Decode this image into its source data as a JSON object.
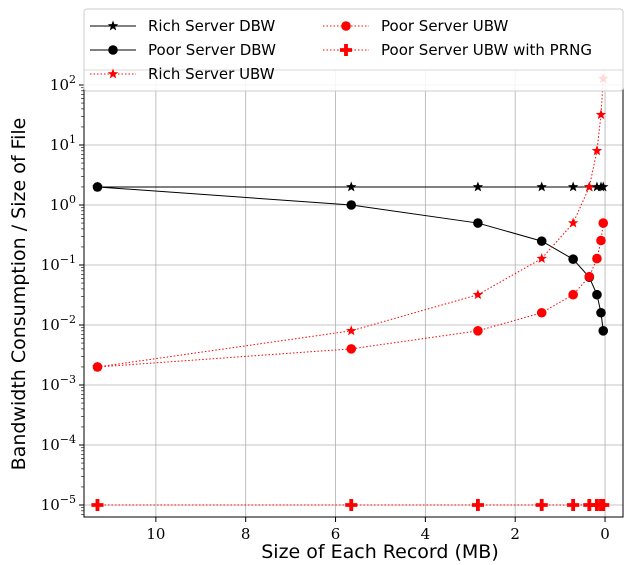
{
  "chart_data": {
    "type": "line",
    "xlabel": "Size of Each Record (MB)",
    "ylabel": "Bandwidth Consumption / Size of File",
    "x_inverted": true,
    "xlim": [
      11.6,
      -0.4
    ],
    "y_scale": "log",
    "ylim_exp": [
      -5.2,
      2.25
    ],
    "x_ticks": [
      {
        "value": 10,
        "label": "10"
      },
      {
        "value": 8,
        "label": "8"
      },
      {
        "value": 6,
        "label": "6"
      },
      {
        "value": 4,
        "label": "4"
      },
      {
        "value": 2,
        "label": "2"
      },
      {
        "value": 0,
        "label": "0"
      }
    ],
    "y_ticks": [
      {
        "exp": 2,
        "base": "10",
        "sup": "2"
      },
      {
        "exp": 1,
        "base": "10",
        "sup": "1"
      },
      {
        "exp": 0,
        "base": "10",
        "sup": "0"
      },
      {
        "exp": -1,
        "base": "10",
        "sup": "−1"
      },
      {
        "exp": -2,
        "base": "10",
        "sup": "−2"
      },
      {
        "exp": -3,
        "base": "10",
        "sup": "−3"
      },
      {
        "exp": -4,
        "base": "10",
        "sup": "−4"
      },
      {
        "exp": -5,
        "base": "10",
        "sup": "−5"
      }
    ],
    "x": [
      11.3,
      5.65,
      2.83,
      1.41,
      0.71,
      0.35,
      0.18,
      0.09,
      0.04
    ],
    "grid": true,
    "legend_position": "top",
    "series": [
      {
        "name": "Rich Server DBW",
        "color": "#000000",
        "marker": "star",
        "line": "solid",
        "x": [
          11.3,
          5.65,
          2.83,
          1.41,
          0.71,
          0.35,
          0.18,
          0.09,
          0.04
        ],
        "values": [
          2,
          2,
          2,
          2,
          2,
          2,
          2,
          2,
          2
        ]
      },
      {
        "name": "Poor Server DBW",
        "color": "#000000",
        "marker": "circle",
        "line": "solid",
        "x": [
          11.3,
          5.65,
          2.83,
          1.41,
          0.71,
          0.35,
          0.18,
          0.09,
          0.04
        ],
        "values": [
          2,
          1,
          0.5,
          0.25,
          0.125,
          0.0625,
          0.032,
          0.016,
          0.008
        ]
      },
      {
        "name": "Rich Server UBW",
        "color": "#ff0000",
        "marker": "star",
        "line": "dotted",
        "x": [
          11.3,
          5.65,
          2.83,
          1.41,
          0.71,
          0.35,
          0.18,
          0.09,
          0.04
        ],
        "values": [
          0.002,
          0.008,
          0.032,
          0.128,
          0.5,
          2,
          8,
          32,
          128
        ]
      },
      {
        "name": "Poor Server UBW",
        "color": "#ff0000",
        "marker": "circle",
        "line": "dotted",
        "x": [
          11.3,
          5.65,
          2.83,
          1.41,
          0.71,
          0.35,
          0.18,
          0.09,
          0.04
        ],
        "values": [
          0.002,
          0.004,
          0.008,
          0.016,
          0.032,
          0.064,
          0.128,
          0.256,
          0.5
        ]
      },
      {
        "name": "Poor Server UBW with PRNG",
        "color": "#ff0000",
        "marker": "plus",
        "line": "dotted",
        "x": [
          11.3,
          5.65,
          2.83,
          1.41,
          0.71,
          0.35,
          0.18,
          0.09,
          0.04
        ],
        "values": [
          1e-05,
          1e-05,
          1e-05,
          1e-05,
          1e-05,
          1e-05,
          1e-05,
          1e-05,
          1e-05
        ]
      }
    ],
    "legend_layout": [
      [
        "Rich Server DBW",
        "Poor Server DBW",
        "Rich Server UBW"
      ],
      [
        "Poor Server UBW",
        "Poor Server UBW with PRNG"
      ]
    ]
  }
}
